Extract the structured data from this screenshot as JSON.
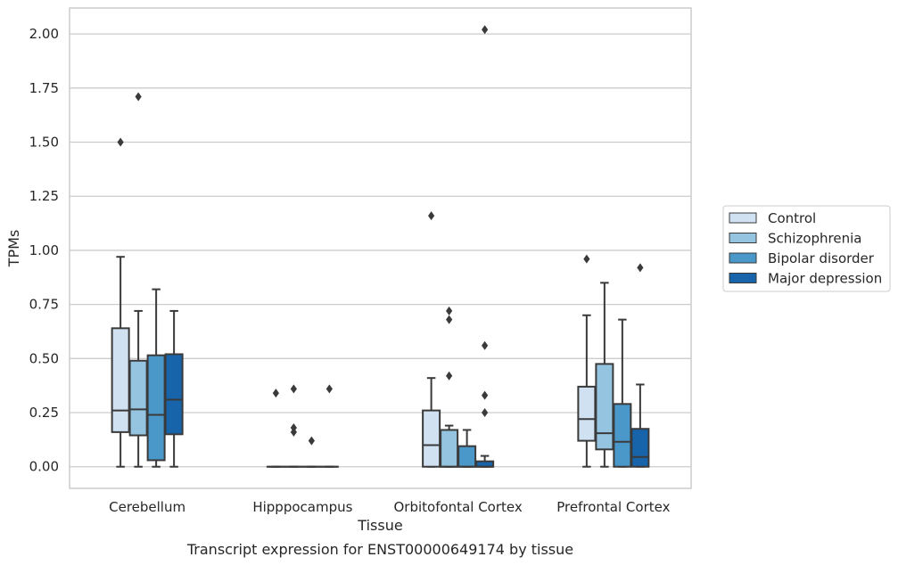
{
  "chart_data": {
    "type": "boxplot",
    "title": "",
    "caption": "Transcript expression for ENST00000649174 by tissue",
    "xlabel": "Tissue",
    "ylabel": "TPMs",
    "ylim": [
      -0.1,
      2.12
    ],
    "yticks": [
      0.0,
      0.25,
      0.5,
      0.75,
      1.0,
      1.25,
      1.5,
      1.75,
      2.0
    ],
    "ytick_labels": [
      "0.00",
      "0.25",
      "0.50",
      "0.75",
      "1.00",
      "1.25",
      "1.50",
      "1.75",
      "2.00"
    ],
    "grid": "y",
    "legend_position": "right",
    "categories": [
      "Cerebellum",
      "Hipppocampus",
      "Orbitofontal Cortex",
      "Prefrontal Cortex"
    ],
    "series": [
      {
        "name": "Control",
        "color": "#d0e1f2",
        "boxes": [
          {
            "whislo": 0.0,
            "q1": 0.16,
            "med": 0.26,
            "q3": 0.64,
            "whishi": 0.97,
            "fliers": [
              1.5
            ]
          },
          {
            "whislo": 0.0,
            "q1": 0.0,
            "med": 0.0,
            "q3": 0.0,
            "whishi": 0.0,
            "fliers": [
              0.34
            ]
          },
          {
            "whislo": 0.0,
            "q1": 0.0,
            "med": 0.1,
            "q3": 0.26,
            "whishi": 0.41,
            "fliers": [
              1.16
            ]
          },
          {
            "whislo": 0.0,
            "q1": 0.12,
            "med": 0.22,
            "q3": 0.37,
            "whishi": 0.7,
            "fliers": [
              0.96
            ]
          }
        ]
      },
      {
        "name": "Schizophrenia",
        "color": "#94c4df",
        "boxes": [
          {
            "whislo": 0.0,
            "q1": 0.145,
            "med": 0.265,
            "q3": 0.49,
            "whishi": 0.72,
            "fliers": [
              1.71
            ]
          },
          {
            "whislo": 0.0,
            "q1": 0.0,
            "med": 0.0,
            "q3": 0.0,
            "whishi": 0.0,
            "fliers": [
              0.36,
              0.18,
              0.16
            ]
          },
          {
            "whislo": 0.0,
            "q1": 0.0,
            "med": 0.0,
            "q3": 0.17,
            "whishi": 0.19,
            "fliers": [
              0.72,
              0.68,
              0.42
            ]
          },
          {
            "whislo": 0.0,
            "q1": 0.08,
            "med": 0.155,
            "q3": 0.475,
            "whishi": 0.85,
            "fliers": []
          }
        ]
      },
      {
        "name": "Bipolar disorder",
        "color": "#4a98c9",
        "boxes": [
          {
            "whislo": 0.0,
            "q1": 0.03,
            "med": 0.24,
            "q3": 0.515,
            "whishi": 0.82,
            "fliers": []
          },
          {
            "whislo": 0.0,
            "q1": 0.0,
            "med": 0.0,
            "q3": 0.0,
            "whishi": 0.0,
            "fliers": [
              0.12
            ]
          },
          {
            "whislo": 0.0,
            "q1": 0.0,
            "med": 0.0,
            "q3": 0.095,
            "whishi": 0.17,
            "fliers": []
          },
          {
            "whislo": 0.0,
            "q1": 0.0,
            "med": 0.115,
            "q3": 0.29,
            "whishi": 0.68,
            "fliers": []
          }
        ]
      },
      {
        "name": "Major depression",
        "color": "#1764ab",
        "boxes": [
          {
            "whislo": 0.0,
            "q1": 0.15,
            "med": 0.31,
            "q3": 0.52,
            "whishi": 0.72,
            "fliers": []
          },
          {
            "whislo": 0.0,
            "q1": 0.0,
            "med": 0.0,
            "q3": 0.0,
            "whishi": 0.0,
            "fliers": [
              0.36
            ]
          },
          {
            "whislo": 0.0,
            "q1": 0.0,
            "med": 0.0,
            "q3": 0.025,
            "whishi": 0.05,
            "fliers": [
              2.02,
              0.56,
              0.33,
              0.25
            ]
          },
          {
            "whislo": 0.0,
            "q1": 0.0,
            "med": 0.045,
            "q3": 0.175,
            "whishi": 0.38,
            "fliers": [
              0.92
            ]
          }
        ]
      }
    ]
  }
}
